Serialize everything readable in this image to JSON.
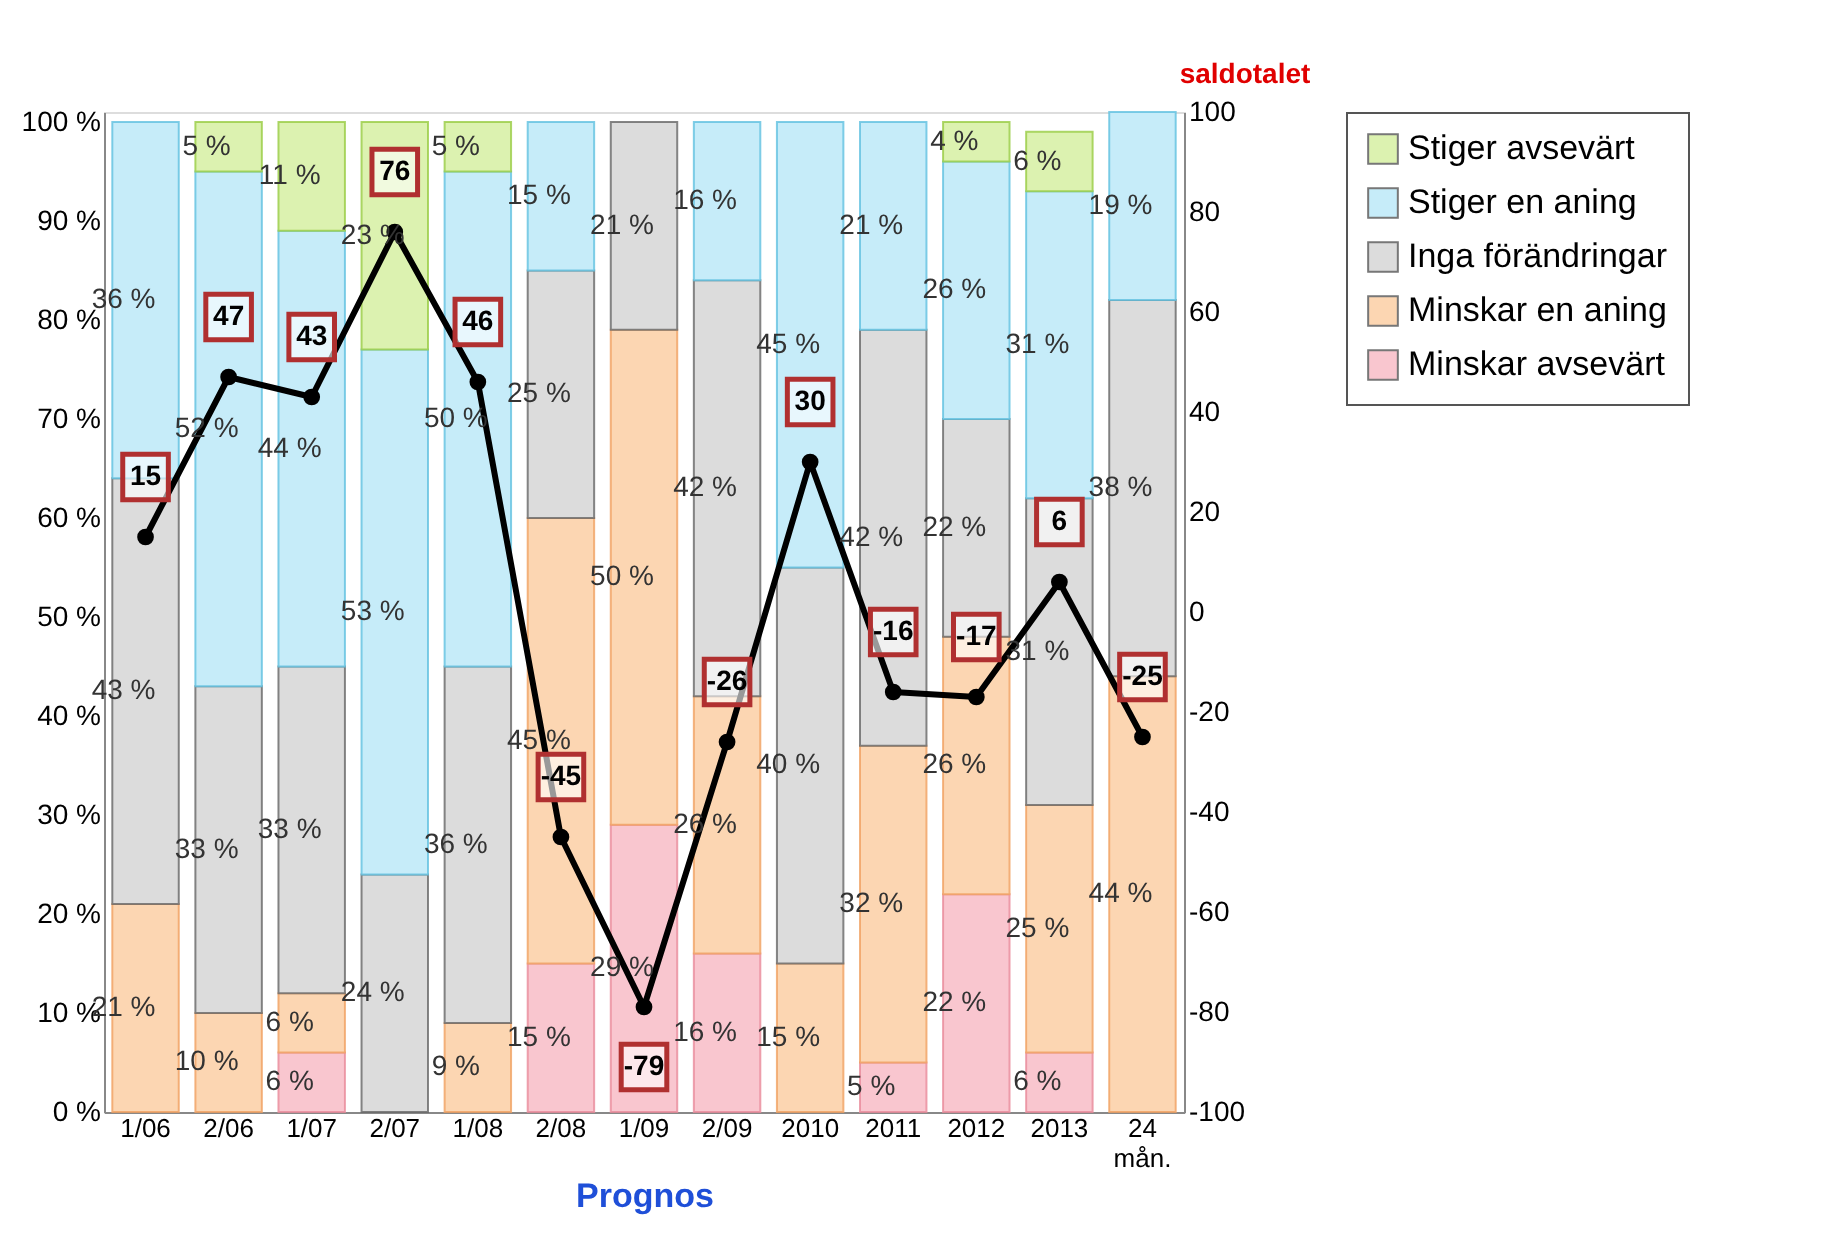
{
  "chart_data": {
    "type": "bar",
    "stacked": true,
    "categories": [
      "1/06",
      "2/06",
      "1/07",
      "2/07",
      "1/08",
      "2/08",
      "1/09",
      "2/09",
      "2010",
      "2011",
      "2012",
      "2013",
      "24 mån."
    ],
    "xlabel": "Prognos",
    "y2label": "saldotalet",
    "series": [
      {
        "name": "Minskar avsevärt",
        "color": "#f9c6cf",
        "values": [
          null,
          null,
          6,
          null,
          null,
          15,
          29,
          16,
          null,
          5,
          22,
          6,
          null
        ],
        "value_labels": [
          null,
          null,
          "6 %",
          null,
          null,
          "15 %",
          "29 %",
          "16 %",
          null,
          "5 %",
          "22 %",
          "6 %",
          null
        ]
      },
      {
        "name": "Minskar en aning",
        "color": "#fcd6b2",
        "values": [
          21,
          10,
          6,
          null,
          9,
          45,
          50,
          26,
          15,
          32,
          26,
          25,
          44
        ],
        "value_labels": [
          "21 %",
          "10 %",
          "6 %",
          null,
          "9 %",
          "45 %",
          "50 %",
          "26 %",
          "15 %",
          "32 %",
          "26 %",
          "25 %",
          "44 %"
        ]
      },
      {
        "name": "Inga förändringar",
        "color": "#dcdcdc",
        "values": [
          43,
          33,
          33,
          24,
          36,
          25,
          21,
          42,
          40,
          42,
          22,
          31,
          38
        ],
        "value_labels": [
          "43 %",
          "33 %",
          "33 %",
          "24 %",
          "36 %",
          "25 %",
          "21 %",
          "42 %",
          "40 %",
          "42 %",
          "22 %",
          "31 %",
          "38 %"
        ]
      },
      {
        "name": "Stiger en aning",
        "color": "#c6ecf9",
        "values": [
          36,
          52,
          44,
          53,
          50,
          15,
          null,
          16,
          45,
          21,
          26,
          31,
          19
        ],
        "value_labels": [
          "36 %",
          "52 %",
          "44 %",
          "53 %",
          "50 %",
          "15 %",
          null,
          "16 %",
          "45 %",
          "21 %",
          "26 %",
          "31 %",
          "19 %"
        ]
      },
      {
        "name": "Stiger avsevärt",
        "color": "#dcf2b0",
        "values": [
          null,
          5,
          11,
          23,
          5,
          null,
          null,
          null,
          null,
          null,
          4,
          6,
          null
        ],
        "value_labels": [
          null,
          "5 %",
          "11 %",
          "23 %",
          "5 %",
          null,
          null,
          null,
          null,
          null,
          "4 %",
          "6 %",
          null
        ]
      },
      {
        "type": "line",
        "axis": "y2",
        "color": "#000000",
        "values": [
          15,
          47,
          43,
          76,
          46,
          -45,
          -79,
          -26,
          30,
          -16,
          -17,
          6,
          -25
        ],
        "value_labels": [
          "15",
          "47",
          "43",
          "76",
          "46",
          "-45",
          "-79",
          "-26",
          "30",
          "-16",
          "-17",
          "6",
          "-25"
        ]
      }
    ],
    "ylim": [
      0,
      101
    ],
    "yticks": [
      {
        "value": 0,
        "label": "0 %"
      },
      {
        "value": 10,
        "label": "10 %"
      },
      {
        "value": 20,
        "label": "20 %"
      },
      {
        "value": 30,
        "label": "30 %"
      },
      {
        "value": 40,
        "label": "40 %"
      },
      {
        "value": 50,
        "label": "50 %"
      },
      {
        "value": 60,
        "label": "60 %"
      },
      {
        "value": 70,
        "label": "70 %"
      },
      {
        "value": 80,
        "label": "80 %"
      },
      {
        "value": 90,
        "label": "90 %"
      },
      {
        "value": 100,
        "label": "100 %"
      }
    ],
    "y2lim": [
      -100,
      100
    ],
    "y2ticks": [
      -100,
      -80,
      -60,
      -40,
      -20,
      0,
      20,
      40,
      60,
      80,
      100
    ],
    "marker": "circle",
    "grid": false,
    "legend": "right"
  }
}
